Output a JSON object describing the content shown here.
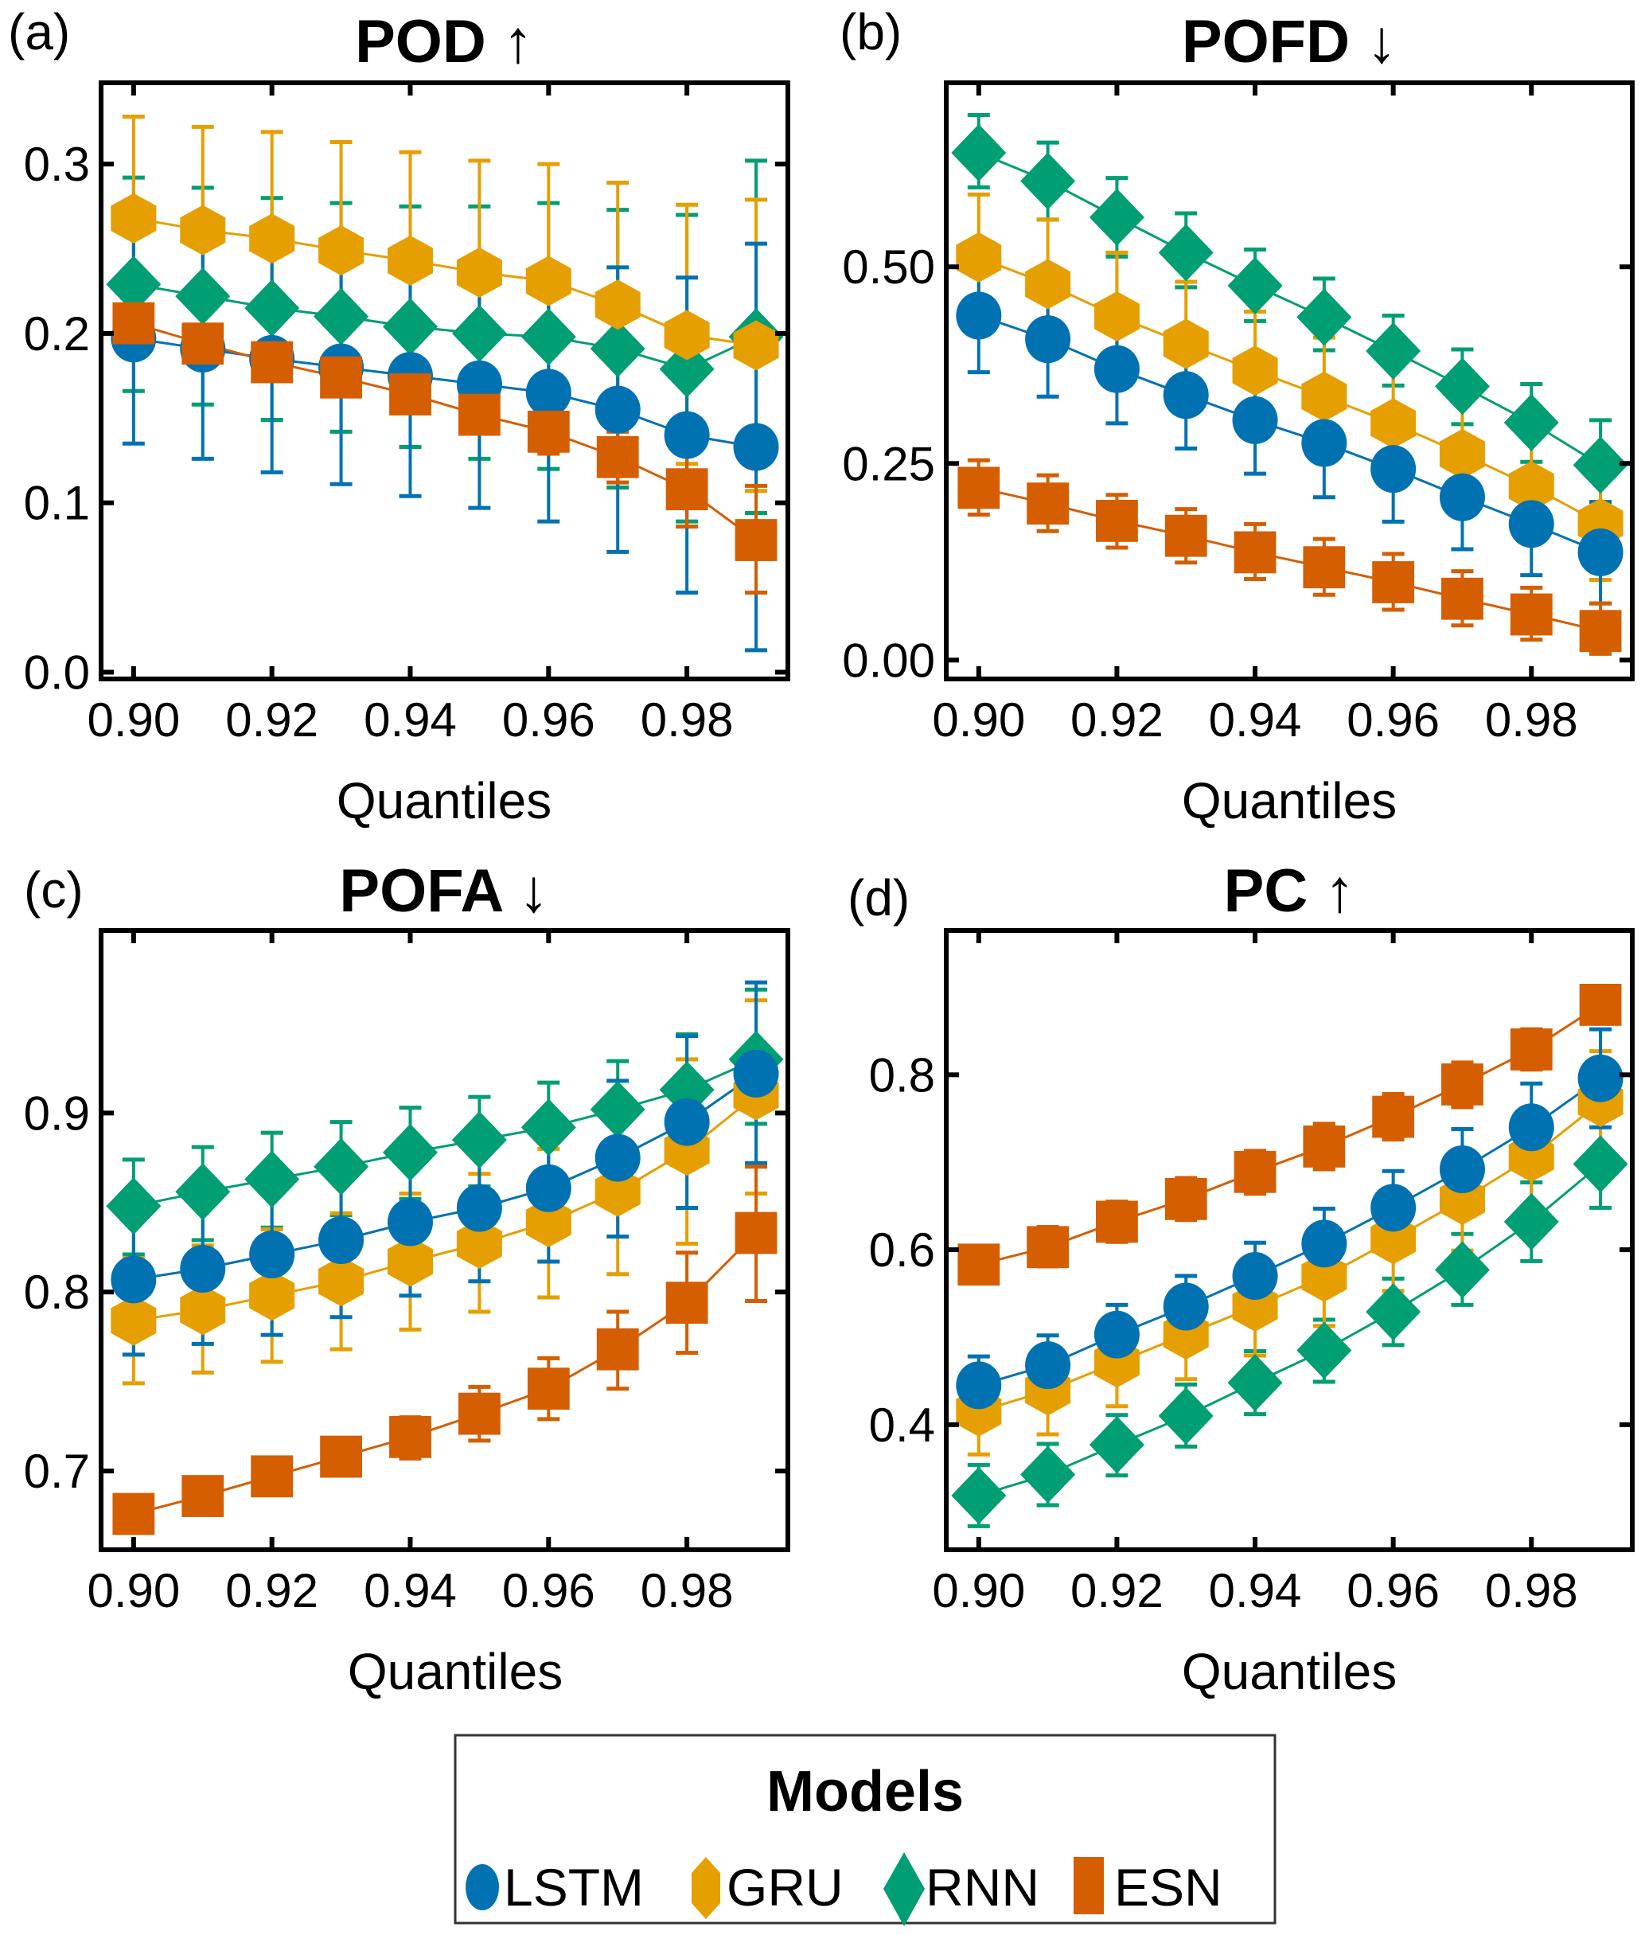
{
  "chart_data": [
    {
      "type": "line",
      "panel_label": "(a)",
      "title": "POD ↑",
      "xlabel": "Quantiles",
      "ylabel": "",
      "x": [
        0.9,
        0.91,
        0.92,
        0.93,
        0.94,
        0.95,
        0.96,
        0.97,
        0.98,
        0.99
      ],
      "xticks": [
        "0.90",
        "0.92",
        "0.94",
        "0.96",
        "0.98"
      ],
      "xtick_values": [
        0.9,
        0.92,
        0.94,
        0.96,
        0.98
      ],
      "yticks": [
        "0.0",
        "0.1",
        "0.2",
        "0.3"
      ],
      "ytick_values": [
        0.0,
        0.1,
        0.2,
        0.3
      ],
      "xlim": [
        0.8953,
        0.9946
      ],
      "ylim": [
        -0.004,
        0.348
      ],
      "grid": false,
      "series": [
        {
          "name": "LSTM",
          "values": [
            0.197,
            0.191,
            0.185,
            0.18,
            0.175,
            0.17,
            0.165,
            0.155,
            0.14,
            0.133
          ],
          "err_low": [
            0.135,
            0.126,
            0.118,
            0.111,
            0.104,
            0.097,
            0.089,
            0.071,
            0.047,
            0.013
          ],
          "err_high": [
            0.26,
            0.256,
            0.253,
            0.249,
            0.246,
            0.243,
            0.241,
            0.239,
            0.233,
            0.253
          ]
        },
        {
          "name": "GRU",
          "values": [
            0.268,
            0.261,
            0.256,
            0.249,
            0.243,
            0.236,
            0.231,
            0.217,
            0.199,
            0.193
          ],
          "err_low": [
            0.207,
            0.2,
            0.192,
            0.186,
            0.178,
            0.171,
            0.162,
            0.145,
            0.123,
            0.107
          ],
          "err_high": [
            0.328,
            0.322,
            0.319,
            0.313,
            0.307,
            0.302,
            0.3,
            0.289,
            0.276,
            0.279
          ]
        },
        {
          "name": "RNN",
          "values": [
            0.229,
            0.222,
            0.215,
            0.21,
            0.204,
            0.2,
            0.198,
            0.191,
            0.179,
            0.198
          ],
          "err_low": [
            0.166,
            0.158,
            0.149,
            0.142,
            0.133,
            0.126,
            0.12,
            0.109,
            0.089,
            0.094
          ],
          "err_high": [
            0.292,
            0.286,
            0.28,
            0.277,
            0.275,
            0.275,
            0.277,
            0.273,
            0.27,
            0.302
          ]
        },
        {
          "name": "ESN",
          "values": [
            0.206,
            0.194,
            0.183,
            0.174,
            0.164,
            0.152,
            0.142,
            0.127,
            0.108,
            0.078
          ],
          "err_low": [
            0.206,
            0.194,
            0.178,
            0.166,
            0.155,
            0.141,
            0.129,
            0.112,
            0.086,
            0.047
          ],
          "err_high": [
            0.206,
            0.194,
            0.187,
            0.182,
            0.172,
            0.163,
            0.154,
            0.142,
            0.131,
            0.11
          ]
        }
      ]
    },
    {
      "type": "line",
      "panel_label": "(b)",
      "title": "POFD ↓",
      "xlabel": "Quantiles",
      "ylabel": "",
      "x": [
        0.9,
        0.91,
        0.92,
        0.93,
        0.94,
        0.95,
        0.96,
        0.97,
        0.98,
        0.99
      ],
      "xticks": [
        "0.90",
        "0.92",
        "0.94",
        "0.96",
        "0.98"
      ],
      "xtick_values": [
        0.9,
        0.92,
        0.94,
        0.96,
        0.98
      ],
      "yticks": [
        "0.00",
        "0.25",
        "0.50"
      ],
      "ytick_values": [
        0.0,
        0.25,
        0.5
      ],
      "xlim": [
        0.8953,
        0.9946
      ],
      "ylim": [
        -0.024,
        0.734
      ],
      "grid": false,
      "series": [
        {
          "name": "LSTM",
          "values": [
            0.438,
            0.408,
            0.37,
            0.337,
            0.305,
            0.276,
            0.243,
            0.207,
            0.173,
            0.137
          ],
          "err_low": [
            0.366,
            0.335,
            0.301,
            0.269,
            0.237,
            0.207,
            0.176,
            0.141,
            0.108,
            0.072
          ],
          "err_high": [
            0.51,
            0.482,
            0.44,
            0.405,
            0.372,
            0.344,
            0.309,
            0.272,
            0.238,
            0.201
          ]
        },
        {
          "name": "GRU",
          "values": [
            0.512,
            0.478,
            0.437,
            0.402,
            0.368,
            0.335,
            0.301,
            0.262,
            0.221,
            0.174
          ],
          "err_low": [
            0.431,
            0.396,
            0.357,
            0.323,
            0.293,
            0.261,
            0.226,
            0.187,
            0.149,
            0.102
          ],
          "err_high": [
            0.592,
            0.56,
            0.518,
            0.481,
            0.443,
            0.41,
            0.376,
            0.336,
            0.294,
            0.245
          ]
        },
        {
          "name": "RNN",
          "values": [
            0.645,
            0.609,
            0.563,
            0.518,
            0.476,
            0.436,
            0.393,
            0.348,
            0.302,
            0.248
          ],
          "err_low": [
            0.601,
            0.56,
            0.513,
            0.474,
            0.431,
            0.394,
            0.349,
            0.3,
            0.252,
            0.189
          ],
          "err_high": [
            0.693,
            0.658,
            0.613,
            0.568,
            0.522,
            0.485,
            0.438,
            0.395,
            0.351,
            0.305
          ]
        },
        {
          "name": "ESN",
          "values": [
            0.219,
            0.199,
            0.177,
            0.158,
            0.137,
            0.118,
            0.099,
            0.078,
            0.058,
            0.037
          ],
          "err_low": [
            0.185,
            0.164,
            0.143,
            0.124,
            0.103,
            0.083,
            0.064,
            0.044,
            0.026,
            0.008
          ],
          "err_high": [
            0.254,
            0.235,
            0.21,
            0.192,
            0.173,
            0.154,
            0.135,
            0.113,
            0.092,
            0.072
          ]
        }
      ]
    },
    {
      "type": "line",
      "panel_label": "(c)",
      "title": "POFA ↓",
      "xlabel": "Quantiles",
      "ylabel": "",
      "x": [
        0.9,
        0.91,
        0.92,
        0.93,
        0.94,
        0.95,
        0.96,
        0.97,
        0.98,
        0.99
      ],
      "xticks": [
        "0.90",
        "0.92",
        "0.94",
        "0.96",
        "0.98"
      ],
      "xtick_values": [
        0.9,
        0.92,
        0.94,
        0.96,
        0.98
      ],
      "yticks": [
        "0.7",
        "0.8",
        "0.9"
      ],
      "ytick_values": [
        0.7,
        0.8,
        0.9
      ],
      "xlim": [
        0.8953,
        0.9946
      ],
      "ylim": [
        0.656,
        1.002
      ],
      "grid": false,
      "series": [
        {
          "name": "LSTM",
          "values": [
            0.807,
            0.813,
            0.821,
            0.829,
            0.839,
            0.847,
            0.858,
            0.875,
            0.895,
            0.922
          ],
          "err_low": [
            0.765,
            0.771,
            0.776,
            0.786,
            0.798,
            0.806,
            0.817,
            0.831,
            0.847,
            0.872
          ],
          "err_high": [
            0.849,
            0.856,
            0.866,
            0.873,
            0.88,
            0.888,
            0.899,
            0.918,
            0.943,
            0.973
          ]
        },
        {
          "name": "GRU",
          "values": [
            0.784,
            0.79,
            0.798,
            0.806,
            0.817,
            0.827,
            0.839,
            0.856,
            0.879,
            0.91
          ],
          "err_low": [
            0.749,
            0.755,
            0.761,
            0.768,
            0.779,
            0.789,
            0.797,
            0.81,
            0.827,
            0.855
          ],
          "err_high": [
            0.819,
            0.826,
            0.835,
            0.844,
            0.855,
            0.866,
            0.88,
            0.9,
            0.93,
            0.963
          ]
        },
        {
          "name": "RNN",
          "values": [
            0.848,
            0.856,
            0.863,
            0.87,
            0.878,
            0.885,
            0.892,
            0.902,
            0.913,
            0.93
          ],
          "err_low": [
            0.821,
            0.829,
            0.836,
            0.843,
            0.852,
            0.859,
            0.866,
            0.875,
            0.882,
            0.894
          ],
          "err_high": [
            0.874,
            0.881,
            0.889,
            0.895,
            0.903,
            0.909,
            0.917,
            0.929,
            0.944,
            0.969
          ]
        },
        {
          "name": "ESN",
          "values": [
            0.676,
            0.686,
            0.697,
            0.708,
            0.719,
            0.732,
            0.746,
            0.768,
            0.794,
            0.833
          ],
          "err_low": [
            0.676,
            0.686,
            0.693,
            0.699,
            0.707,
            0.717,
            0.729,
            0.746,
            0.766,
            0.795
          ],
          "err_high": [
            0.676,
            0.686,
            0.702,
            0.718,
            0.73,
            0.747,
            0.763,
            0.789,
            0.822,
            0.87
          ]
        }
      ]
    },
    {
      "type": "line",
      "panel_label": "(d)",
      "title": "PC ↑",
      "xlabel": "Quantiles",
      "ylabel": "",
      "x": [
        0.9,
        0.91,
        0.92,
        0.93,
        0.94,
        0.95,
        0.96,
        0.97,
        0.98,
        0.99
      ],
      "xticks": [
        "0.90",
        "0.92",
        "0.94",
        "0.96",
        "0.98"
      ],
      "xtick_values": [
        0.9,
        0.92,
        0.94,
        0.96,
        0.98
      ],
      "yticks": [
        "0.4",
        "0.6",
        "0.8"
      ],
      "ytick_values": [
        0.4,
        0.6,
        0.8
      ],
      "xlim": [
        0.8953,
        0.9946
      ],
      "ylim": [
        0.257,
        0.965
      ],
      "grid": false,
      "series": [
        {
          "name": "LSTM",
          "values": [
            0.445,
            0.468,
            0.503,
            0.535,
            0.57,
            0.607,
            0.648,
            0.692,
            0.74,
            0.796
          ],
          "err_low": [
            0.412,
            0.435,
            0.47,
            0.5,
            0.532,
            0.567,
            0.606,
            0.646,
            0.69,
            0.74
          ],
          "err_high": [
            0.478,
            0.502,
            0.537,
            0.57,
            0.608,
            0.647,
            0.69,
            0.738,
            0.79,
            0.852
          ]
        },
        {
          "name": "GRU",
          "values": [
            0.415,
            0.439,
            0.471,
            0.503,
            0.535,
            0.569,
            0.612,
            0.657,
            0.706,
            0.769
          ],
          "err_low": [
            0.366,
            0.389,
            0.421,
            0.452,
            0.479,
            0.513,
            0.553,
            0.599,
            0.649,
            0.709
          ],
          "err_high": [
            0.463,
            0.488,
            0.522,
            0.554,
            0.591,
            0.627,
            0.67,
            0.714,
            0.762,
            0.827
          ]
        },
        {
          "name": "RNN",
          "values": [
            0.319,
            0.343,
            0.377,
            0.41,
            0.448,
            0.485,
            0.529,
            0.577,
            0.632,
            0.698
          ],
          "err_low": [
            0.284,
            0.308,
            0.342,
            0.375,
            0.412,
            0.449,
            0.491,
            0.537,
            0.587,
            0.648
          ],
          "err_high": [
            0.354,
            0.378,
            0.411,
            0.446,
            0.484,
            0.52,
            0.567,
            0.618,
            0.677,
            0.75
          ]
        },
        {
          "name": "ESN",
          "values": [
            0.583,
            0.603,
            0.632,
            0.658,
            0.689,
            0.718,
            0.752,
            0.789,
            0.829,
            0.88
          ],
          "err_low": [
            0.562,
            0.581,
            0.609,
            0.634,
            0.664,
            0.692,
            0.726,
            0.763,
            0.806,
            0.86
          ],
          "err_high": [
            0.604,
            0.626,
            0.655,
            0.682,
            0.713,
            0.744,
            0.778,
            0.814,
            0.852,
            0.901
          ]
        }
      ]
    }
  ],
  "legend": {
    "title": "Models",
    "placement": "bottom-center",
    "items": [
      {
        "name": "LSTM",
        "marker": "circle",
        "color": "#0072b2"
      },
      {
        "name": "GRU",
        "marker": "hexagon",
        "color": "#e69f00"
      },
      {
        "name": "RNN",
        "marker": "diamond",
        "color": "#009e73"
      },
      {
        "name": "ESN",
        "marker": "square",
        "color": "#d55e00"
      }
    ]
  },
  "colors": {
    "LSTM": "#0072b2",
    "GRU": "#e69f00",
    "RNN": "#009e73",
    "ESN": "#d55e00",
    "axis": "#000000"
  }
}
